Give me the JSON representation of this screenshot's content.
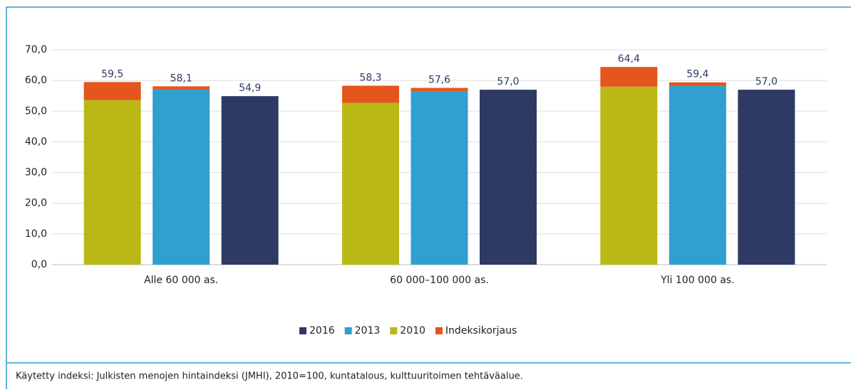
{
  "chart_data": {
    "type": "grouped_stacked_bar",
    "categories": [
      "Alle 60 000 as.",
      "60 000–100 000 as.",
      "Yli 100 000 as."
    ],
    "series": [
      {
        "name": "2016",
        "color": "#2e3a63",
        "values": [
          54.9,
          57.0,
          57.0
        ],
        "value_labels": [
          "54,9",
          "57,0",
          "57,0"
        ]
      },
      {
        "name": "2013",
        "color": "#319fcf",
        "values": [
          57.1,
          56.4,
          58.2
        ],
        "total_labels": [
          {
            "value": 58.1,
            "label": "58,1"
          },
          {
            "value": 57.6,
            "label": "57,6"
          },
          {
            "value": 59.4,
            "label": "59,4"
          }
        ]
      },
      {
        "name": "2010",
        "color": "#bab815",
        "values": [
          53.6,
          52.7,
          58.0
        ],
        "total_labels": [
          {
            "value": 59.5,
            "label": "59,5"
          },
          {
            "value": 58.3,
            "label": "58,3"
          },
          {
            "value": 64.4,
            "label": "64,4"
          }
        ]
      },
      {
        "name": "Indeksikorjaus",
        "color": "#e5561c",
        "values_2010": [
          5.9,
          5.6,
          6.4
        ],
        "values_2013": [
          1.0,
          1.2,
          1.2
        ]
      }
    ],
    "ylim": [
      0,
      70
    ],
    "yticks": [
      {
        "value": 0,
        "label": "0,0"
      },
      {
        "value": 10,
        "label": "10,0"
      },
      {
        "value": 20,
        "label": "20,0"
      },
      {
        "value": 30,
        "label": "30,0"
      },
      {
        "value": 40,
        "label": "40,0"
      },
      {
        "value": 50,
        "label": "50,0"
      },
      {
        "value": 60,
        "label": "60,0"
      },
      {
        "value": 70,
        "label": "70,0"
      }
    ],
    "grid": true,
    "legend": "bottom",
    "note": "Käytetty indeksi: Julkisten menojen hintaindeksi (JMHI), 2010=100, kuntatalous, kulttuuritoimen tehtäväalue."
  }
}
